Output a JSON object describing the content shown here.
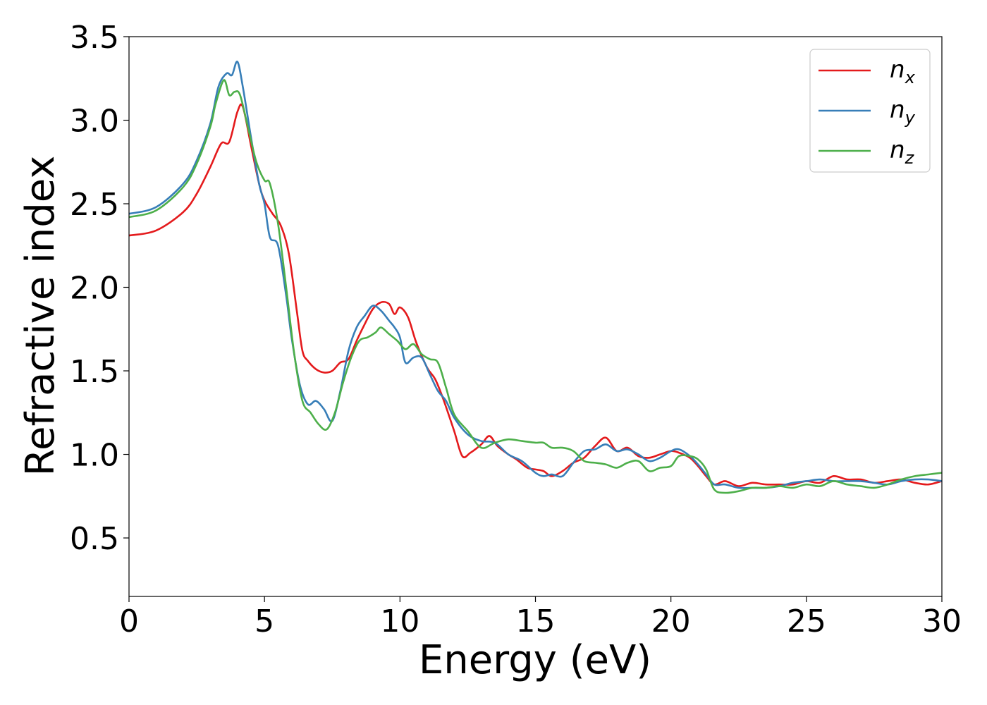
{
  "chart_data": {
    "type": "line",
    "title": "",
    "xlabel": "Energy (eV)",
    "ylabel": "Refractive index",
    "xlim": [
      0,
      30
    ],
    "ylim": [
      0.15,
      3.5
    ],
    "xticks": [
      0,
      5,
      10,
      15,
      20,
      25,
      30
    ],
    "yticks": [
      0.5,
      1.0,
      1.5,
      2.0,
      2.5,
      3.0,
      3.5
    ],
    "xtick_labels": [
      "0",
      "5",
      "10",
      "15",
      "20",
      "25",
      "30"
    ],
    "ytick_labels": [
      "0.5",
      "1.0",
      "1.5",
      "2.0",
      "2.5",
      "3.0",
      "3.5"
    ],
    "grid": false,
    "legend": {
      "position": "top-right"
    },
    "series": [
      {
        "name": "n",
        "subscript": "x",
        "color": "#e41a1c",
        "x": [
          0,
          1,
          2,
          2.5,
          3,
          3.4,
          3.7,
          4.0,
          4.2,
          4.5,
          4.8,
          5.0,
          5.3,
          5.6,
          5.9,
          6.2,
          6.4,
          6.6,
          6.9,
          7.2,
          7.5,
          7.8,
          8.1,
          8.4,
          8.7,
          9.0,
          9.3,
          9.6,
          9.8,
          10.0,
          10.3,
          10.6,
          11.0,
          11.3,
          11.6,
          12.0,
          12.3,
          12.6,
          13.0,
          13.3,
          13.6,
          14.0,
          14.3,
          14.7,
          15.0,
          15.3,
          15.6,
          16.0,
          16.4,
          16.8,
          17.2,
          17.6,
          18.0,
          18.4,
          18.8,
          19.2,
          19.6,
          20.0,
          20.3,
          20.7,
          21.0,
          21.3,
          21.6,
          22.0,
          22.5,
          23.0,
          23.5,
          24.0,
          24.5,
          25.0,
          25.5,
          26.0,
          26.5,
          27.0,
          27.5,
          28.0,
          28.5,
          29.0,
          29.5,
          30.0
        ],
        "y": [
          2.31,
          2.34,
          2.45,
          2.56,
          2.72,
          2.86,
          2.87,
          3.05,
          3.08,
          2.85,
          2.62,
          2.52,
          2.44,
          2.37,
          2.2,
          1.85,
          1.62,
          1.56,
          1.51,
          1.49,
          1.5,
          1.55,
          1.57,
          1.68,
          1.78,
          1.87,
          1.91,
          1.9,
          1.84,
          1.88,
          1.82,
          1.67,
          1.52,
          1.45,
          1.33,
          1.14,
          0.99,
          1.01,
          1.06,
          1.11,
          1.05,
          1.0,
          0.97,
          0.92,
          0.91,
          0.9,
          0.87,
          0.9,
          0.95,
          0.98,
          1.05,
          1.1,
          1.02,
          1.04,
          0.99,
          0.98,
          1.0,
          1.02,
          1.01,
          0.98,
          0.93,
          0.87,
          0.82,
          0.84,
          0.81,
          0.83,
          0.82,
          0.82,
          0.82,
          0.84,
          0.83,
          0.87,
          0.85,
          0.85,
          0.83,
          0.84,
          0.85,
          0.83,
          0.82,
          0.84
        ]
      },
      {
        "name": "n",
        "subscript": "y",
        "color": "#377eb8",
        "x": [
          0,
          1,
          2,
          2.5,
          3,
          3.3,
          3.6,
          3.8,
          4.0,
          4.2,
          4.5,
          4.8,
          5.0,
          5.2,
          5.5,
          5.8,
          6.0,
          6.3,
          6.6,
          6.9,
          7.2,
          7.5,
          7.8,
          8.1,
          8.4,
          8.7,
          9.0,
          9.3,
          9.6,
          9.8,
          10.0,
          10.2,
          10.5,
          10.8,
          11.1,
          11.4,
          11.7,
          12.0,
          12.5,
          13.0,
          13.5,
          14.0,
          14.5,
          15.0,
          15.3,
          15.6,
          16.0,
          16.4,
          16.8,
          17.2,
          17.6,
          18.0,
          18.4,
          18.8,
          19.2,
          19.6,
          20.0,
          20.3,
          20.7,
          21.0,
          21.3,
          21.6,
          22.0,
          22.5,
          23.0,
          23.5,
          24.0,
          24.5,
          25.0,
          25.5,
          26.0,
          26.5,
          27.0,
          27.5,
          28.0,
          28.5,
          29.0,
          29.5,
          30.0
        ],
        "y": [
          2.44,
          2.48,
          2.62,
          2.76,
          2.98,
          3.2,
          3.28,
          3.27,
          3.35,
          3.2,
          2.9,
          2.62,
          2.5,
          2.3,
          2.25,
          1.95,
          1.7,
          1.42,
          1.3,
          1.32,
          1.27,
          1.2,
          1.38,
          1.62,
          1.76,
          1.83,
          1.89,
          1.86,
          1.8,
          1.76,
          1.7,
          1.55,
          1.58,
          1.58,
          1.48,
          1.38,
          1.32,
          1.22,
          1.12,
          1.08,
          1.07,
          1.0,
          0.96,
          0.89,
          0.87,
          0.88,
          0.87,
          0.95,
          1.02,
          1.03,
          1.06,
          1.02,
          1.03,
          1.0,
          0.96,
          0.98,
          1.02,
          1.03,
          0.99,
          0.94,
          0.88,
          0.82,
          0.82,
          0.8,
          0.8,
          0.8,
          0.81,
          0.83,
          0.84,
          0.85,
          0.84,
          0.84,
          0.84,
          0.83,
          0.82,
          0.84,
          0.85,
          0.85,
          0.84
        ]
      },
      {
        "name": "n",
        "subscript": "z",
        "color": "#4daf4a",
        "x": [
          0,
          1,
          2,
          2.5,
          3,
          3.2,
          3.5,
          3.7,
          3.9,
          4.1,
          4.4,
          4.7,
          5.0,
          5.2,
          5.5,
          5.8,
          6.1,
          6.4,
          6.7,
          7.0,
          7.3,
          7.6,
          7.9,
          8.2,
          8.5,
          8.8,
          9.1,
          9.3,
          9.6,
          9.9,
          10.2,
          10.5,
          10.8,
          11.1,
          11.4,
          11.7,
          12.0,
          12.5,
          13.0,
          13.5,
          14.0,
          14.5,
          15.0,
          15.3,
          15.6,
          16.0,
          16.4,
          16.8,
          17.2,
          17.6,
          18.0,
          18.4,
          18.8,
          19.2,
          19.6,
          20.0,
          20.3,
          20.7,
          21.0,
          21.3,
          21.6,
          22.0,
          22.5,
          23.0,
          23.5,
          24.0,
          24.5,
          25.0,
          25.5,
          26.0,
          26.5,
          27.0,
          27.5,
          28.0,
          28.5,
          29.0,
          29.5,
          30.0
        ],
        "y": [
          2.42,
          2.46,
          2.6,
          2.74,
          2.96,
          3.1,
          3.24,
          3.15,
          3.17,
          3.15,
          2.95,
          2.75,
          2.64,
          2.62,
          2.38,
          2.0,
          1.6,
          1.32,
          1.25,
          1.18,
          1.15,
          1.25,
          1.43,
          1.58,
          1.68,
          1.7,
          1.73,
          1.76,
          1.72,
          1.68,
          1.63,
          1.66,
          1.6,
          1.57,
          1.55,
          1.4,
          1.24,
          1.14,
          1.04,
          1.07,
          1.09,
          1.08,
          1.07,
          1.07,
          1.04,
          1.04,
          1.02,
          0.96,
          0.95,
          0.94,
          0.92,
          0.95,
          0.96,
          0.9,
          0.92,
          0.93,
          0.99,
          0.99,
          0.97,
          0.91,
          0.79,
          0.77,
          0.78,
          0.8,
          0.8,
          0.81,
          0.8,
          0.82,
          0.81,
          0.84,
          0.82,
          0.81,
          0.8,
          0.82,
          0.85,
          0.87,
          0.88,
          0.89
        ]
      }
    ]
  }
}
